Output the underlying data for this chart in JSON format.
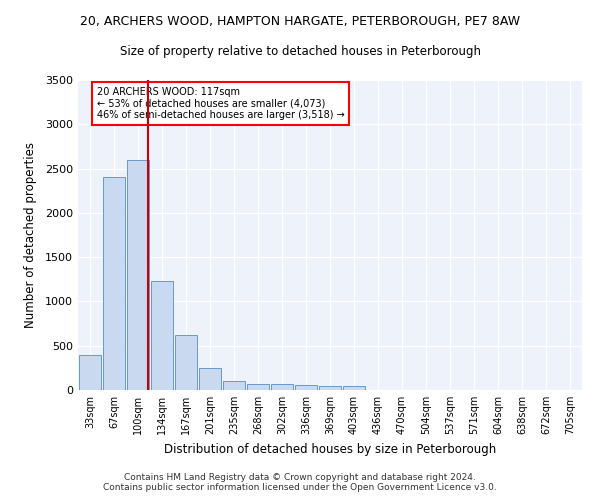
{
  "title1": "20, ARCHERS WOOD, HAMPTON HARGATE, PETERBOROUGH, PE7 8AW",
  "title2": "Size of property relative to detached houses in Peterborough",
  "xlabel": "Distribution of detached houses by size in Peterborough",
  "ylabel": "Number of detached properties",
  "footer1": "Contains HM Land Registry data © Crown copyright and database right 2024.",
  "footer2": "Contains public sector information licensed under the Open Government Licence v3.0.",
  "annotation_line1": "20 ARCHERS WOOD: 117sqm",
  "annotation_line2": "← 53% of detached houses are smaller (4,073)",
  "annotation_line3": "46% of semi-detached houses are larger (3,518) →",
  "bar_color": "#c9d9f0",
  "bar_edge_color": "#6699cc",
  "bar_edge_width": 0.7,
  "red_line_color": "#cc0000",
  "background_color": "#eef2fb",
  "categories": [
    "33sqm",
    "67sqm",
    "100sqm",
    "134sqm",
    "167sqm",
    "201sqm",
    "235sqm",
    "268sqm",
    "302sqm",
    "336sqm",
    "369sqm",
    "403sqm",
    "436sqm",
    "470sqm",
    "504sqm",
    "537sqm",
    "571sqm",
    "604sqm",
    "638sqm",
    "672sqm",
    "705sqm"
  ],
  "values": [
    390,
    2400,
    2600,
    1230,
    620,
    250,
    105,
    65,
    65,
    55,
    40,
    40,
    0,
    0,
    0,
    0,
    0,
    0,
    0,
    0,
    0
  ],
  "red_line_x": 2.42,
  "ylim": [
    0,
    3500
  ],
  "yticks": [
    0,
    500,
    1000,
    1500,
    2000,
    2500,
    3000,
    3500
  ]
}
